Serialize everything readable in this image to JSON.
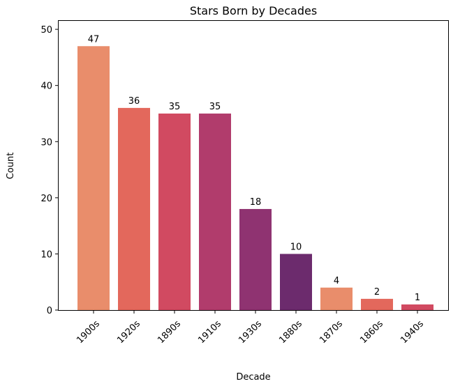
{
  "chart_data": {
    "type": "bar",
    "title": "Stars Born by Decades",
    "xlabel": "Decade",
    "ylabel": "Count",
    "categories": [
      "1900s",
      "1920s",
      "1890s",
      "1910s",
      "1930s",
      "1880s",
      "1870s",
      "1860s",
      "1940s"
    ],
    "values": [
      47,
      36,
      35,
      35,
      18,
      10,
      4,
      2,
      1
    ],
    "colors": [
      "#e98d6b",
      "#e3685c",
      "#d14a61",
      "#b13c6c",
      "#8f3371",
      "#6c2b6d",
      "#e98d6b",
      "#e3685c",
      "#d14a61"
    ],
    "ylim": [
      0,
      51.5
    ],
    "yticks": [
      0,
      10,
      20,
      30,
      40,
      50
    ],
    "grid": false,
    "legend": "none"
  }
}
